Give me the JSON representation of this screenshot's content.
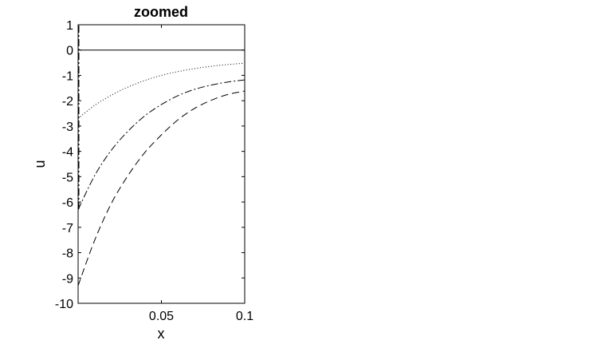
{
  "chart_data": {
    "type": "line",
    "title": "zoomed",
    "xlabel": "x",
    "ylabel": "u",
    "xlim": [
      0,
      0.1
    ],
    "ylim": [
      -10,
      1
    ],
    "xticks": [
      0.05,
      0.1
    ],
    "xtick_labels": [
      "0.05",
      "0.1"
    ],
    "yticks": [
      1,
      0,
      -1,
      -2,
      -3,
      -4,
      -5,
      -6,
      -7,
      -8,
      -9,
      -10
    ],
    "ytick_labels": [
      "1",
      "0",
      "-1",
      "-2",
      "-3",
      "-4",
      "-5",
      "-6",
      "-7",
      "-8",
      "-9",
      "-10"
    ],
    "grid": false,
    "legend": "none",
    "series": [
      {
        "style": "solid",
        "color": "#000000",
        "x": [
          0,
          0.1
        ],
        "y": [
          0,
          0
        ]
      },
      {
        "style": "dotted",
        "color": "#000000",
        "x": [
          0,
          0.01,
          0.02,
          0.03,
          0.04,
          0.05,
          0.06,
          0.07,
          0.08,
          0.09,
          0.1
        ],
        "y": [
          -2.7,
          -2.18,
          -1.78,
          -1.46,
          -1.2,
          -1.0,
          -0.85,
          -0.73,
          -0.64,
          -0.57,
          -0.52
        ]
      },
      {
        "style": "dashdot",
        "color": "#000000",
        "x": [
          0,
          0.01,
          0.02,
          0.03,
          0.04,
          0.05,
          0.06,
          0.07,
          0.08,
          0.09,
          0.1
        ],
        "y": [
          -6.3,
          -4.95,
          -3.95,
          -3.2,
          -2.6,
          -2.15,
          -1.8,
          -1.55,
          -1.38,
          -1.26,
          -1.18
        ]
      },
      {
        "style": "dashed",
        "color": "#000000",
        "x": [
          0,
          0.01,
          0.02,
          0.03,
          0.04,
          0.05,
          0.06,
          0.07,
          0.08,
          0.09,
          0.1
        ],
        "y": [
          -9.3,
          -7.5,
          -6.05,
          -4.95,
          -4.05,
          -3.35,
          -2.75,
          -2.3,
          -1.98,
          -1.75,
          -1.62
        ]
      }
    ]
  }
}
